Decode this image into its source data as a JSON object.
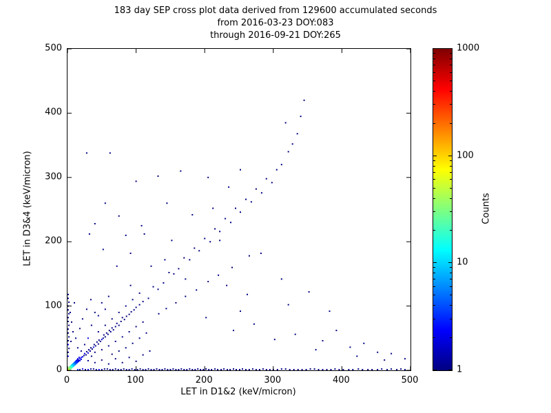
{
  "colors": {
    "background": "#ffffff",
    "axis": "#000000",
    "min_count_color": "#000080",
    "max_count_color": "#800000"
  },
  "chart_data": {
    "type": "scatter",
    "title_lines": [
      "183 day SEP cross plot data derived from 129600 accumulated seconds",
      "from 2016-03-23 DOY:083",
      "through 2016-09-21 DOY:265"
    ],
    "xlabel": "LET in D1&2 (keV/micron)",
    "ylabel": "LET in D3&4 (keV/micron)",
    "xlim": [
      0,
      500
    ],
    "ylim": [
      0,
      500
    ],
    "x_ticks": [
      0,
      100,
      200,
      300,
      400,
      500
    ],
    "y_ticks": [
      0,
      100,
      200,
      300,
      400,
      500
    ],
    "grid": false,
    "colorbar": {
      "label": "Counts",
      "scale": "log",
      "min": 1,
      "max": 1000,
      "ticks": [
        1,
        10,
        100,
        1000
      ],
      "colormap": "jet"
    },
    "points": [
      [
        1,
        1,
        100
      ],
      [
        2,
        1,
        80
      ],
      [
        1,
        2,
        80
      ],
      [
        2,
        2,
        60
      ],
      [
        3,
        1,
        50
      ],
      [
        1,
        3,
        50
      ],
      [
        3,
        2,
        45
      ],
      [
        2,
        3,
        45
      ],
      [
        3,
        3,
        40
      ],
      [
        4,
        2,
        35
      ],
      [
        2,
        4,
        35
      ],
      [
        4,
        4,
        30
      ],
      [
        5,
        3,
        28
      ],
      [
        3,
        5,
        28
      ],
      [
        5,
        5,
        25
      ],
      [
        6,
        4,
        22
      ],
      [
        4,
        6,
        22
      ],
      [
        6,
        6,
        20
      ],
      [
        7,
        5,
        18
      ],
      [
        5,
        7,
        18
      ],
      [
        7,
        7,
        15
      ],
      [
        8,
        6,
        12
      ],
      [
        6,
        8,
        12
      ],
      [
        8,
        8,
        10
      ],
      [
        9,
        7,
        9
      ],
      [
        7,
        9,
        9
      ],
      [
        10,
        8,
        8
      ],
      [
        8,
        10,
        8
      ],
      [
        10,
        10,
        7
      ],
      [
        11,
        9,
        6
      ],
      [
        9,
        11,
        6
      ],
      [
        12,
        10,
        5
      ],
      [
        10,
        12,
        5
      ],
      [
        12,
        12,
        4
      ],
      [
        13,
        11,
        4
      ],
      [
        11,
        13,
        4
      ],
      [
        14,
        12,
        3
      ],
      [
        12,
        14,
        3
      ],
      [
        14,
        14,
        3
      ],
      [
        15,
        13,
        3
      ],
      [
        13,
        15,
        3
      ],
      [
        16,
        14,
        2
      ],
      [
        14,
        16,
        2
      ],
      [
        16,
        16,
        2
      ],
      [
        18,
        15,
        2
      ],
      [
        15,
        18,
        2
      ],
      [
        18,
        18,
        2
      ],
      [
        20,
        17,
        2
      ],
      [
        17,
        20,
        2
      ],
      [
        20,
        20,
        2
      ],
      [
        22,
        21,
        2
      ],
      [
        24,
        23,
        1
      ],
      [
        25,
        26,
        2
      ],
      [
        27,
        24,
        1
      ],
      [
        28,
        29,
        1
      ],
      [
        30,
        27,
        2
      ],
      [
        31,
        32,
        1
      ],
      [
        33,
        30,
        1
      ],
      [
        34,
        35,
        1
      ],
      [
        36,
        33,
        1
      ],
      [
        38,
        36,
        2
      ],
      [
        39,
        40,
        1
      ],
      [
        41,
        38,
        1
      ],
      [
        43,
        44,
        1
      ],
      [
        45,
        41,
        1
      ],
      [
        46,
        47,
        1
      ],
      [
        48,
        45,
        1
      ],
      [
        50,
        48,
        2
      ],
      [
        52,
        50,
        1
      ],
      [
        53,
        55,
        1
      ],
      [
        55,
        52,
        1
      ],
      [
        57,
        58,
        1
      ],
      [
        59,
        56,
        1
      ],
      [
        61,
        62,
        1
      ],
      [
        63,
        60,
        1
      ],
      [
        65,
        66,
        1
      ],
      [
        67,
        63,
        1
      ],
      [
        70,
        68,
        1
      ],
      [
        72,
        73,
        1
      ],
      [
        75,
        70,
        1
      ],
      [
        78,
        76,
        1
      ],
      [
        80,
        82,
        1
      ],
      [
        83,
        79,
        1
      ],
      [
        86,
        84,
        1
      ],
      [
        90,
        87,
        1
      ],
      [
        93,
        91,
        1
      ],
      [
        97,
        94,
        1
      ],
      [
        100,
        98,
        1
      ],
      [
        105,
        102,
        1
      ],
      [
        110,
        107,
        1
      ],
      [
        20,
        30,
        1
      ],
      [
        25,
        40,
        1
      ],
      [
        30,
        50,
        2
      ],
      [
        35,
        22,
        1
      ],
      [
        40,
        28,
        1
      ],
      [
        45,
        60,
        1
      ],
      [
        50,
        32,
        1
      ],
      [
        55,
        70,
        1
      ],
      [
        60,
        38,
        1
      ],
      [
        65,
        80,
        1
      ],
      [
        70,
        45,
        1
      ],
      [
        75,
        90,
        1
      ],
      [
        80,
        52,
        1
      ],
      [
        85,
        100,
        1
      ],
      [
        90,
        60,
        1
      ],
      [
        95,
        110,
        1
      ],
      [
        100,
        68,
        1
      ],
      [
        105,
        120,
        1
      ],
      [
        110,
        75,
        1
      ],
      [
        15,
        35,
        1
      ],
      [
        12,
        50,
        1
      ],
      [
        18,
        65,
        1
      ],
      [
        22,
        80,
        1
      ],
      [
        28,
        95,
        1
      ],
      [
        34,
        110,
        1
      ],
      [
        8,
        60,
        1
      ],
      [
        6,
        75,
        1
      ],
      [
        4,
        90,
        1
      ],
      [
        10,
        105,
        1
      ],
      [
        5,
        45,
        1
      ],
      [
        40,
        90,
        1
      ],
      [
        50,
        105,
        1
      ],
      [
        60,
        115,
        1
      ],
      [
        35,
        70,
        1
      ],
      [
        45,
        85,
        1
      ],
      [
        55,
        95,
        1
      ],
      [
        65,
        25,
        1
      ],
      [
        75,
        30,
        1
      ],
      [
        85,
        35,
        1
      ],
      [
        95,
        42,
        1
      ],
      [
        105,
        50,
        1
      ],
      [
        115,
        58,
        1
      ],
      [
        30,
        15,
        1
      ],
      [
        40,
        12,
        1
      ],
      [
        50,
        16,
        1
      ],
      [
        60,
        10,
        1
      ],
      [
        70,
        18,
        1
      ],
      [
        80,
        12,
        1
      ],
      [
        90,
        20,
        1
      ],
      [
        100,
        14,
        1
      ],
      [
        110,
        24,
        1
      ],
      [
        120,
        30,
        1
      ],
      [
        1,
        22,
        2
      ],
      [
        1,
        28,
        1
      ],
      [
        2,
        34,
        1
      ],
      [
        1,
        40,
        2
      ],
      [
        1,
        46,
        1
      ],
      [
        2,
        52,
        1
      ],
      [
        1,
        58,
        1
      ],
      [
        1,
        64,
        1
      ],
      [
        2,
        70,
        1
      ],
      [
        1,
        76,
        1
      ],
      [
        1,
        82,
        1
      ],
      [
        2,
        88,
        1
      ],
      [
        1,
        94,
        1
      ],
      [
        1,
        100,
        1
      ],
      [
        2,
        106,
        1
      ],
      [
        1,
        112,
        1
      ],
      [
        1,
        118,
        1
      ],
      [
        15,
        1,
        3
      ],
      [
        22,
        2,
        2
      ],
      [
        30,
        1,
        2
      ],
      [
        38,
        2,
        1
      ],
      [
        46,
        1,
        2
      ],
      [
        54,
        2,
        1
      ],
      [
        62,
        1,
        1
      ],
      [
        70,
        2,
        1
      ],
      [
        78,
        1,
        1
      ],
      [
        86,
        1,
        1
      ],
      [
        94,
        2,
        1
      ],
      [
        102,
        1,
        1
      ],
      [
        110,
        1,
        1
      ],
      [
        118,
        2,
        1
      ],
      [
        126,
        1,
        1
      ],
      [
        134,
        1,
        1
      ],
      [
        142,
        2,
        1
      ],
      [
        150,
        1,
        1
      ],
      [
        158,
        1,
        1
      ],
      [
        166,
        2,
        1
      ],
      [
        174,
        1,
        1
      ],
      [
        182,
        1,
        1
      ],
      [
        190,
        2,
        1
      ],
      [
        198,
        1,
        1
      ],
      [
        206,
        1,
        1
      ],
      [
        215,
        2,
        1
      ],
      [
        224,
        1,
        1
      ],
      [
        233,
        1,
        1
      ],
      [
        242,
        2,
        1
      ],
      [
        251,
        1,
        1
      ],
      [
        260,
        1,
        1
      ],
      [
        270,
        2,
        1
      ],
      [
        280,
        1,
        1
      ],
      [
        290,
        1,
        1
      ],
      [
        300,
        1,
        1
      ],
      [
        312,
        2,
        1
      ],
      [
        324,
        1,
        1
      ],
      [
        336,
        1,
        1
      ],
      [
        348,
        1,
        1
      ],
      [
        360,
        2,
        1
      ],
      [
        372,
        1,
        1
      ],
      [
        384,
        1,
        1
      ],
      [
        396,
        1,
        1
      ],
      [
        410,
        1,
        1
      ],
      [
        424,
        2,
        1
      ],
      [
        438,
        1,
        1
      ],
      [
        452,
        1,
        1
      ],
      [
        466,
        1,
        1
      ],
      [
        480,
        1,
        1
      ],
      [
        492,
        1,
        1
      ],
      [
        486,
        2,
        1
      ],
      [
        472,
        2,
        1
      ],
      [
        458,
        2,
        1
      ],
      [
        444,
        1,
        1
      ],
      [
        430,
        1,
        1
      ],
      [
        416,
        1,
        1
      ],
      [
        402,
        1,
        1
      ],
      [
        390,
        2,
        1
      ],
      [
        378,
        1,
        1
      ],
      [
        366,
        1,
        1
      ],
      [
        354,
        2,
        1
      ],
      [
        342,
        1,
        1
      ],
      [
        330,
        1,
        1
      ],
      [
        318,
        2,
        1
      ],
      [
        306,
        1,
        1
      ],
      [
        295,
        1,
        1
      ],
      [
        285,
        2,
        1
      ],
      [
        275,
        1,
        1
      ],
      [
        265,
        1,
        1
      ],
      [
        255,
        2,
        1
      ],
      [
        246,
        1,
        1
      ],
      [
        237,
        1,
        1
      ],
      [
        228,
        2,
        1
      ],
      [
        219,
        1,
        1
      ],
      [
        210,
        1,
        1
      ],
      [
        202,
        2,
        1
      ],
      [
        194,
        1,
        1
      ],
      [
        186,
        1,
        1
      ],
      [
        178,
        2,
        1
      ],
      [
        170,
        1,
        1
      ],
      [
        162,
        1,
        1
      ],
      [
        154,
        2,
        1
      ],
      [
        146,
        1,
        1
      ],
      [
        138,
        1,
        1
      ],
      [
        130,
        2,
        1
      ],
      [
        122,
        1,
        1
      ],
      [
        114,
        1,
        1
      ],
      [
        106,
        2,
        1
      ],
      [
        98,
        1,
        1
      ],
      [
        90,
        1,
        1
      ],
      [
        82,
        2,
        1
      ],
      [
        74,
        1,
        1
      ],
      [
        66,
        1,
        1
      ],
      [
        58,
        2,
        1
      ],
      [
        50,
        1,
        1
      ],
      [
        42,
        1,
        1
      ],
      [
        34,
        2,
        1
      ],
      [
        26,
        1,
        1
      ],
      [
        18,
        1,
        1
      ],
      [
        118,
        112,
        1
      ],
      [
        125,
        130,
        1
      ],
      [
        132,
        126,
        1
      ],
      [
        140,
        136,
        1
      ],
      [
        148,
        152,
        1
      ],
      [
        155,
        150,
        1
      ],
      [
        162,
        158,
        1
      ],
      [
        170,
        175,
        1
      ],
      [
        178,
        172,
        1
      ],
      [
        185,
        190,
        1
      ],
      [
        192,
        186,
        1
      ],
      [
        200,
        205,
        1
      ],
      [
        208,
        200,
        1
      ],
      [
        215,
        220,
        1
      ],
      [
        222,
        216,
        1
      ],
      [
        230,
        236,
        1
      ],
      [
        238,
        230,
        1
      ],
      [
        245,
        252,
        1
      ],
      [
        252,
        246,
        1
      ],
      [
        260,
        266,
        1
      ],
      [
        268,
        262,
        1
      ],
      [
        275,
        282,
        1
      ],
      [
        283,
        276,
        1
      ],
      [
        290,
        298,
        1
      ],
      [
        298,
        292,
        1
      ],
      [
        305,
        312,
        1
      ],
      [
        312,
        320,
        1
      ],
      [
        318,
        385,
        1
      ],
      [
        322,
        340,
        1
      ],
      [
        328,
        352,
        1
      ],
      [
        335,
        368,
        1
      ],
      [
        340,
        395,
        1
      ],
      [
        345,
        420,
        1
      ],
      [
        265,
        178,
        1
      ],
      [
        240,
        160,
        1
      ],
      [
        220,
        148,
        1
      ],
      [
        205,
        138,
        1
      ],
      [
        188,
        125,
        1
      ],
      [
        172,
        115,
        1
      ],
      [
        158,
        105,
        1
      ],
      [
        144,
        96,
        1
      ],
      [
        133,
        88,
        1
      ],
      [
        62,
        338,
        1
      ],
      [
        100,
        294,
        1
      ],
      [
        108,
        225,
        1
      ],
      [
        40,
        228,
        1
      ],
      [
        92,
        182,
        1
      ],
      [
        122,
        162,
        1
      ],
      [
        172,
        142,
        1
      ],
      [
        232,
        132,
        1
      ],
      [
        262,
        118,
        1
      ],
      [
        322,
        102,
        1
      ],
      [
        382,
        92,
        1
      ],
      [
        202,
        82,
        1
      ],
      [
        242,
        62,
        1
      ],
      [
        302,
        48,
        1
      ],
      [
        362,
        32,
        1
      ],
      [
        422,
        22,
        1
      ],
      [
        462,
        16,
        1
      ],
      [
        132,
        302,
        1
      ],
      [
        212,
        252,
        1
      ],
      [
        252,
        312,
        1
      ],
      [
        282,
        182,
        1
      ],
      [
        312,
        142,
        1
      ],
      [
        352,
        122,
        1
      ],
      [
        392,
        62,
        1
      ],
      [
        432,
        42,
        1
      ],
      [
        472,
        26,
        1
      ],
      [
        152,
        202,
        1
      ],
      [
        182,
        242,
        1
      ],
      [
        222,
        202,
        1
      ],
      [
        92,
        132,
        1
      ],
      [
        72,
        162,
        1
      ],
      [
        52,
        188,
        1
      ],
      [
        32,
        212,
        1
      ],
      [
        112,
        212,
        1
      ],
      [
        142,
        172,
        1
      ],
      [
        252,
        92,
        1
      ],
      [
        272,
        72,
        1
      ],
      [
        332,
        56,
        1
      ],
      [
        372,
        46,
        1
      ],
      [
        412,
        36,
        1
      ],
      [
        452,
        28,
        1
      ],
      [
        492,
        18,
        1
      ],
      [
        28,
        338,
        1
      ],
      [
        55,
        260,
        1
      ],
      [
        75,
        240,
        1
      ],
      [
        145,
        260,
        1
      ],
      [
        235,
        285,
        1
      ],
      [
        205,
        300,
        1
      ],
      [
        165,
        310,
        1
      ],
      [
        85,
        210,
        1
      ]
    ]
  }
}
